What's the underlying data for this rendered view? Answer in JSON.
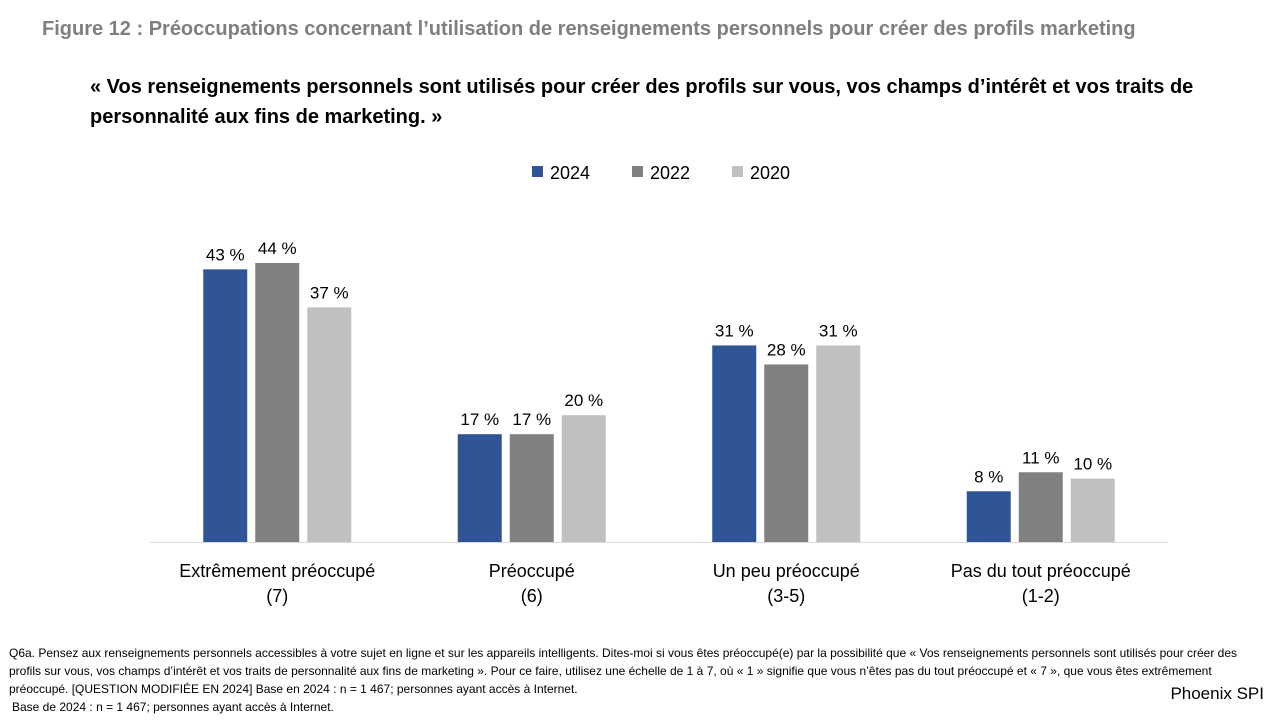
{
  "figure_title": "Figure 12 : Préoccupations concernant l’utilisation de renseignements personnels pour créer des profils marketing",
  "subtitle": "« Vos renseignements personnels sont utilisés pour créer des profils sur vous, vos champs d’intérêt et vos traits de personnalité aux fins de marketing. »",
  "footnote": {
    "question": "Q6a. Pensez aux renseignements personnels accessibles à votre sujet en ligne et sur les appareils intelligents. Dites-moi si vous êtes préoccupé(e) par la possibilité que « Vos renseignements personnels sont utilisés pour créer des profils sur vous, vos champs d’intérêt et vos traits de personnalité aux fins de marketing ». Pour ce faire, utilisez une échelle de 1 à 7, où « 1 » signifie que vous n’êtes pas du tout préoccupé et « 7 », que vous êtes extrêmement préoccupé. [QUESTION MODIFIÉE EN 2024] Base en 2024 : n = 1 467; personnes ayant accès à Internet.",
    "base": "Base de 2024 : n = 1 467; personnes ayant accès à Internet."
  },
  "brand": "Phoenix SPI",
  "chart_data": {
    "type": "bar",
    "categories": [
      [
        "Extrêmement préoccupé",
        "(7)"
      ],
      [
        "Préoccupé",
        "(6)"
      ],
      [
        "Un peu préoccupé",
        "(3-5)"
      ],
      [
        "Pas du tout préoccupé",
        "(1-2)"
      ]
    ],
    "series": [
      {
        "name": "2024",
        "color": "#2f5597",
        "values": [
          43,
          17,
          31,
          8
        ]
      },
      {
        "name": "2022",
        "color": "#808080",
        "values": [
          44,
          17,
          28,
          11
        ]
      },
      {
        "name": "2020",
        "color": "#c0c0c0",
        "values": [
          37,
          20,
          31,
          10
        ]
      }
    ],
    "value_suffix": " %",
    "ylim": [
      0,
      44
    ],
    "legend_position": "top",
    "grid": false
  }
}
